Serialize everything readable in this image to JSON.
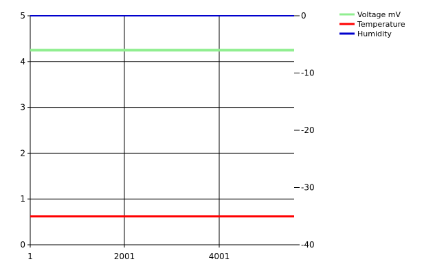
{
  "chart_data": {
    "type": "line",
    "title": "",
    "xlabel": "",
    "ylabel": "",
    "y2label": "",
    "grid": true,
    "legend_position": "top-right",
    "x_ticks": [
      1,
      2001,
      4001
    ],
    "x_range": [
      1,
      5601
    ],
    "y_left": {
      "range": [
        0,
        5
      ],
      "ticks": [
        0,
        1,
        2,
        3,
        4,
        5
      ]
    },
    "y_right": {
      "range": [
        -40,
        0
      ],
      "ticks": [
        0,
        -10,
        -20,
        -30,
        -40
      ]
    },
    "series": [
      {
        "name": "Voltage mV",
        "axis": "left",
        "color": "#90ee90",
        "points": [
          [
            1,
            4.25
          ],
          [
            5601,
            4.25
          ]
        ]
      },
      {
        "name": "Temperature",
        "axis": "left",
        "color": "#ff0000",
        "points": [
          [
            1,
            0.62
          ],
          [
            5601,
            0.62
          ]
        ]
      },
      {
        "name": "Humidity",
        "axis": "right",
        "color": "#0000cd",
        "points": [
          [
            1,
            0
          ],
          [
            5601,
            0
          ]
        ]
      }
    ]
  }
}
